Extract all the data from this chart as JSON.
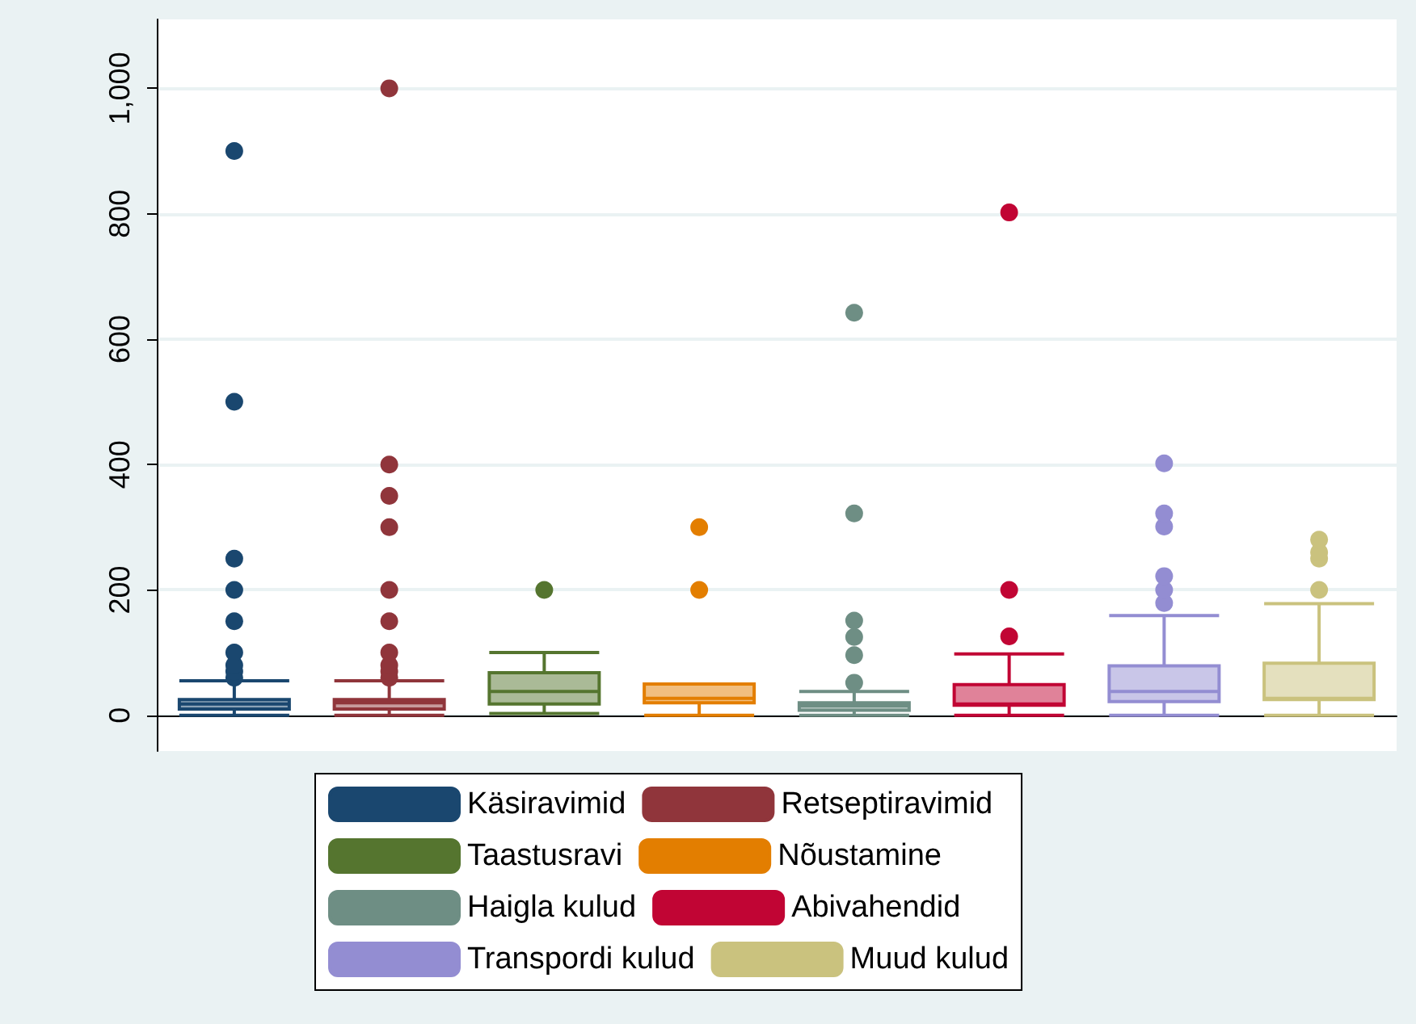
{
  "chart_data": {
    "type": "box",
    "categories": [
      null,
      null,
      null,
      null,
      null,
      null,
      null,
      null
    ],
    "series": [
      {
        "name": "Käsiravimid",
        "color": "#1a476f",
        "boxes": [
          {
            "low": 0,
            "q1": 10,
            "median": 18,
            "q3": 25,
            "high": 55,
            "outliers": [
              60,
              70,
              80,
              100,
              150,
              200,
              250,
              500,
              900
            ]
          },
          null,
          null,
          null,
          null,
          null,
          null,
          null
        ]
      },
      {
        "name": "Retseptiravimid",
        "color": "#90353b",
        "boxes": [
          null,
          {
            "low": 0,
            "q1": 10,
            "median": 20,
            "q3": 25,
            "high": 55,
            "outliers": [
              60,
              70,
              80,
              100,
              150,
              200,
              300,
              350,
              400,
              1000
            ]
          },
          null,
          null,
          null,
          null,
          null,
          null
        ]
      },
      {
        "name": "Taastusravi",
        "color": "#55752f",
        "boxes": [
          null,
          null,
          {
            "low": 3,
            "q1": 18,
            "median": 38,
            "q3": 68,
            "high": 100,
            "outliers": [
              200
            ]
          },
          null,
          null,
          null,
          null,
          null
        ]
      },
      {
        "name": "Nõustamine",
        "color": "#e37e00",
        "boxes": [
          null,
          null,
          null,
          {
            "low": 0,
            "q1": 20,
            "median": 27,
            "q3": 50,
            "high": 50,
            "outliers": [
              200,
              300
            ]
          },
          null,
          null,
          null,
          null
        ]
      },
      {
        "name": "Haigla kulud",
        "color": "#6e8e84",
        "boxes": [
          null,
          null,
          null,
          null,
          {
            "low": 0,
            "q1": 8,
            "median": 15,
            "q3": 20,
            "high": 38,
            "outliers": [
              52,
              96,
              125,
              151,
              322,
              642
            ]
          },
          null,
          null,
          null
        ]
      },
      {
        "name": "Abivahendid",
        "color": "#c10534",
        "boxes": [
          null,
          null,
          null,
          null,
          null,
          {
            "low": 0,
            "q1": 16,
            "median": 18,
            "q3": 49,
            "high": 98,
            "outliers": [
              126,
              200,
              802
            ]
          },
          null,
          null
        ]
      },
      {
        "name": "Transpordi kulud",
        "color": "#938dd2",
        "boxes": [
          null,
          null,
          null,
          null,
          null,
          null,
          {
            "low": 0,
            "q1": 22,
            "median": 38,
            "q3": 79,
            "high": 159,
            "outliers": [
              179,
              200,
              222,
              301,
              322,
              402
            ]
          },
          null
        ]
      },
      {
        "name": "Muud kulud",
        "color": "#cac27e",
        "boxes": [
          null,
          null,
          null,
          null,
          null,
          null,
          null,
          {
            "low": 0,
            "q1": 25,
            "median": 27,
            "q3": 83,
            "high": 178,
            "outliers": [
              200,
              250,
              260,
              280
            ]
          }
        ]
      }
    ],
    "ylim": [
      -57,
      1110
    ],
    "yticks": [
      {
        "value": 0,
        "label": "0"
      },
      {
        "value": 200,
        "label": "200"
      },
      {
        "value": 400,
        "label": "400"
      },
      {
        "value": 600,
        "label": "600"
      },
      {
        "value": 800,
        "label": "800"
      },
      {
        "value": 1000,
        "label": "1,000"
      }
    ],
    "grid": "y",
    "legend": "bottom",
    "marker": "circle"
  }
}
